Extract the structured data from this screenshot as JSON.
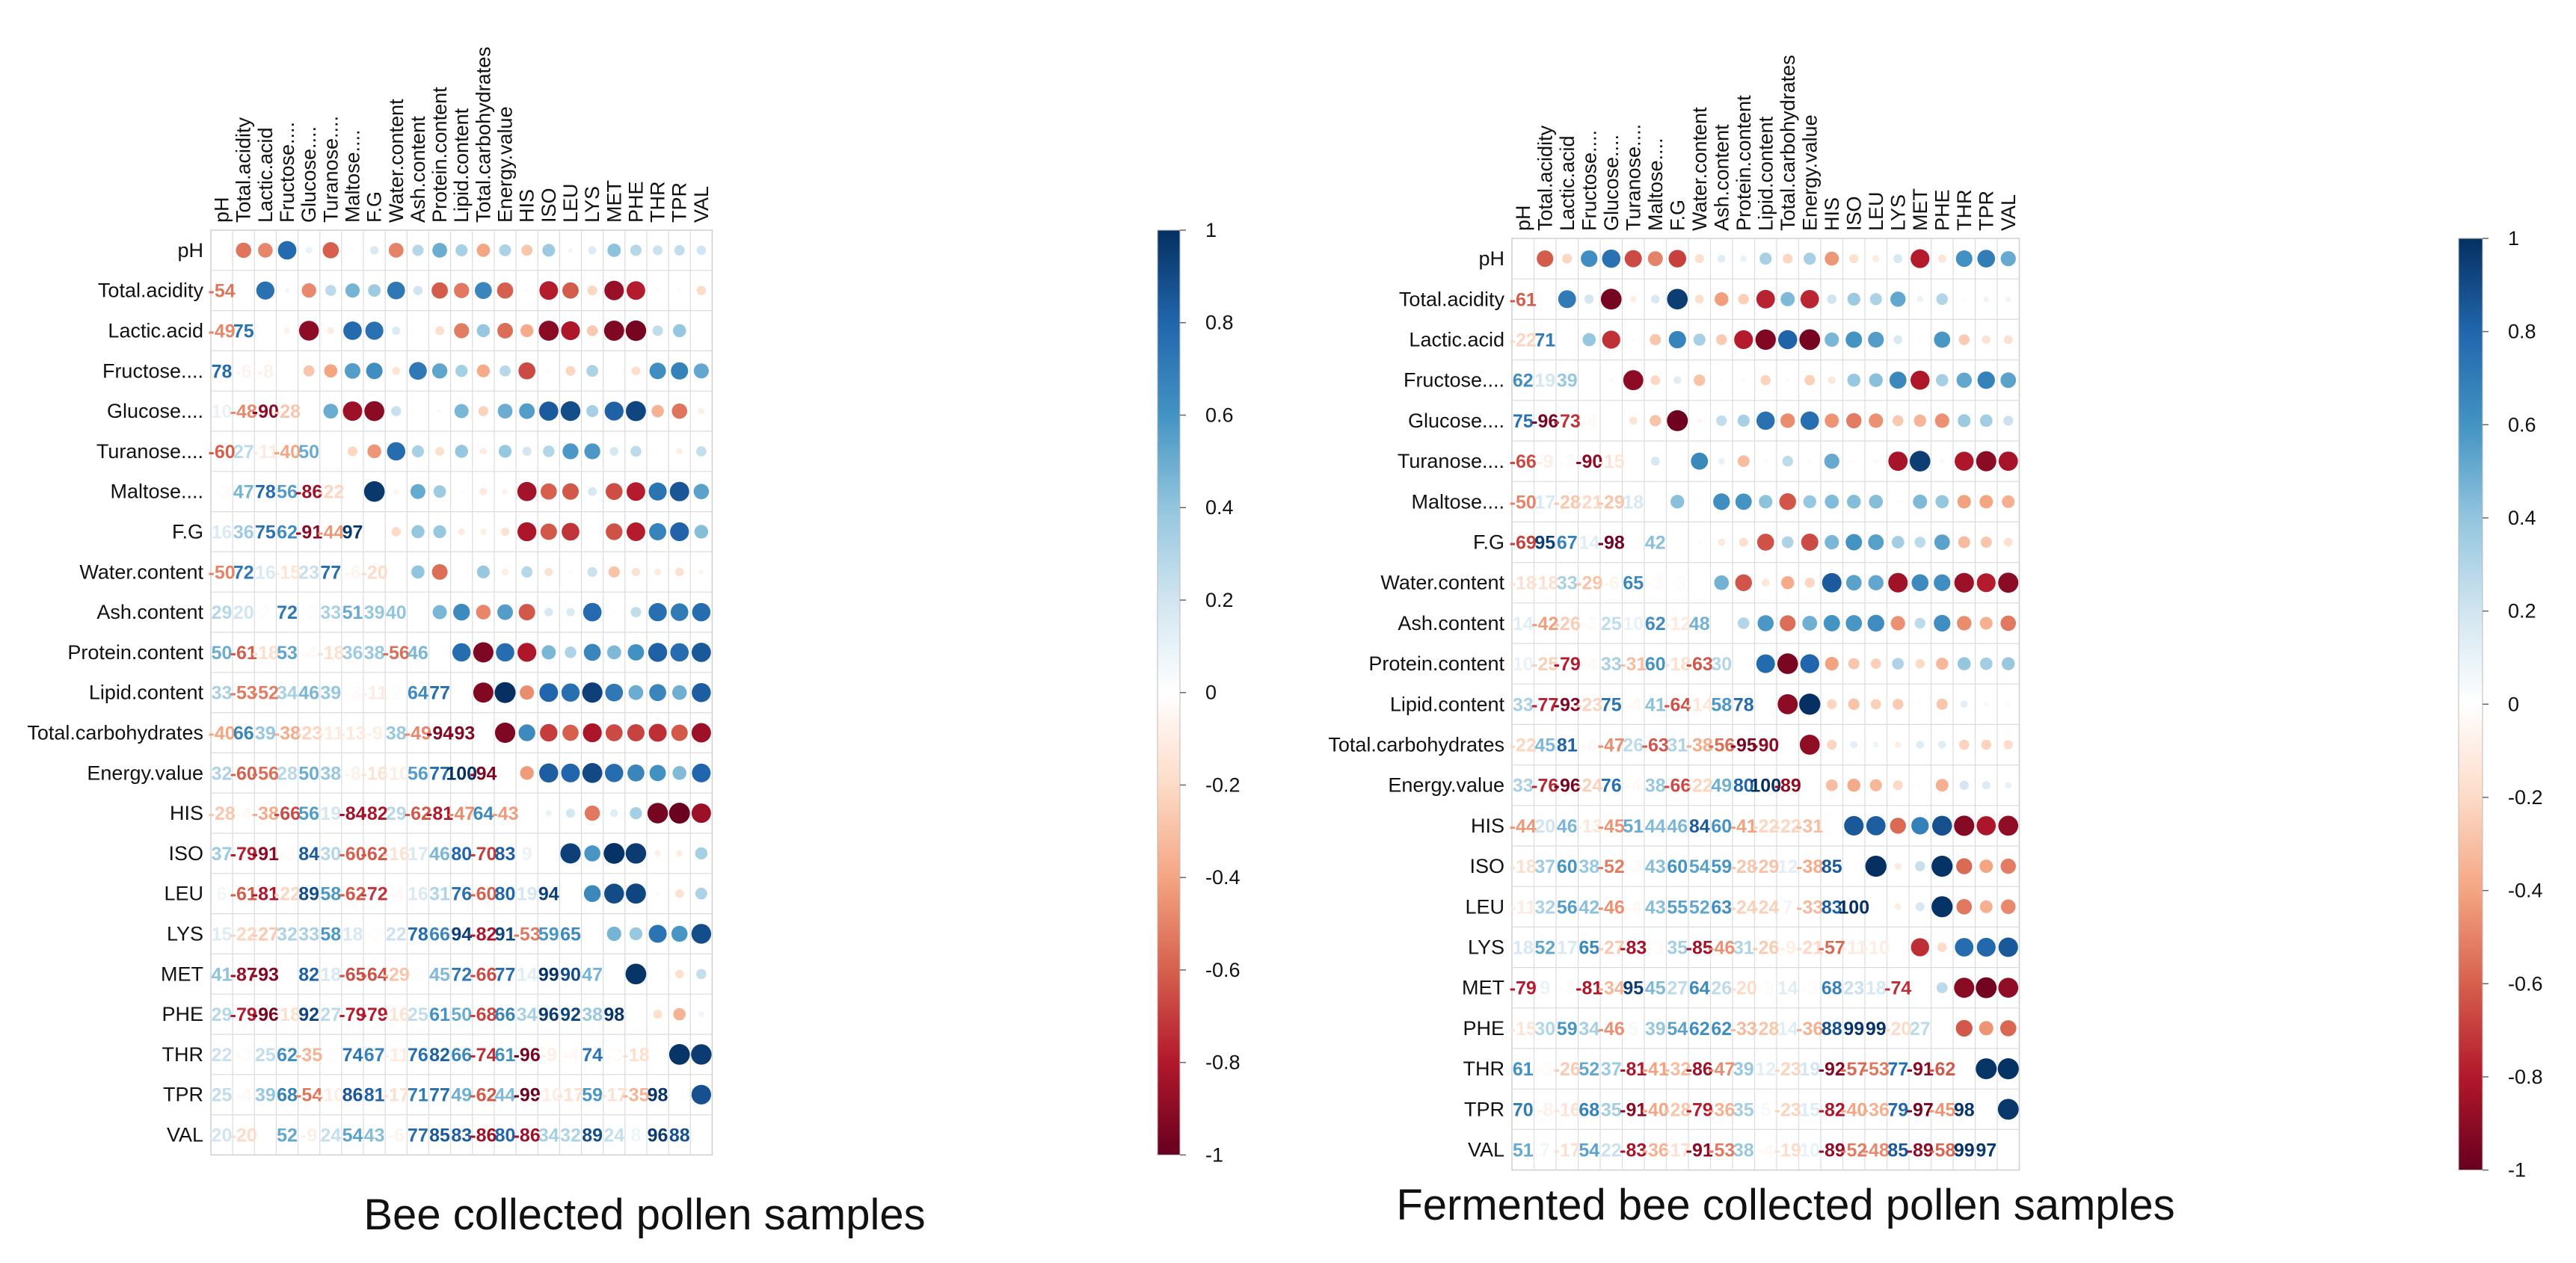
{
  "chart_data": [
    {
      "type": "heatmap",
      "style": "correlogram (mixed: numbers lower, circles upper)",
      "title": "Bee collected pollen samples",
      "variables": [
        "pH",
        "Total.acidity",
        "Lactic.acid",
        "Fructose....",
        "Glucose....",
        "Turanose....",
        "Maltose....",
        "F.G",
        "Water.content",
        "Ash.content",
        "Protein.content",
        "Lipid.content",
        "Total.carbohydrates",
        "Energy.value",
        "HIS",
        "ISO",
        "LEU",
        "LYS",
        "MET",
        "PHE",
        "THR",
        "TPR",
        "VAL"
      ],
      "lower_values": [
        [],
        [
          -54
        ],
        [
          -49,
          75
        ],
        [
          78,
          -6,
          -8
        ],
        [
          10,
          -48,
          -90,
          -28
        ],
        [
          -60,
          27,
          -11,
          -40,
          50
        ],
        [
          -3,
          47,
          78,
          56,
          -86,
          -22
        ],
        [
          16,
          36,
          75,
          62,
          -91,
          -44,
          97
        ],
        [
          -50,
          72,
          16,
          -15,
          23,
          77,
          -6,
          -20
        ],
        [
          29,
          20,
          2,
          72,
          -2,
          33,
          51,
          39,
          40
        ],
        [
          50,
          -61,
          -18,
          53,
          -4,
          -18,
          36,
          38,
          -56,
          46
        ],
        [
          33,
          -53,
          -52,
          34,
          46,
          39,
          -3,
          -11,
          2,
          64,
          77
        ],
        [
          -40,
          66,
          39,
          -38,
          -23,
          -11,
          -13,
          -9,
          38,
          -49,
          -94,
          -93
        ],
        [
          32,
          -60,
          -56,
          28,
          50,
          38,
          -8,
          -16,
          -10,
          56,
          77,
          100,
          -94
        ],
        [
          -28,
          -4,
          -38,
          -66,
          56,
          19,
          -84,
          -82,
          29,
          -62,
          -81,
          -47,
          64,
          -43
        ],
        [
          37,
          -79,
          -91,
          -3,
          84,
          30,
          -60,
          -62,
          -16,
          17,
          46,
          80,
          -70,
          83,
          9
        ],
        [
          6,
          -61,
          -81,
          -22,
          89,
          58,
          -62,
          -72,
          -4,
          16,
          31,
          76,
          -60,
          80,
          19,
          94
        ],
        [
          15,
          -22,
          -27,
          32,
          33,
          58,
          18,
          -2,
          22,
          78,
          66,
          94,
          -82,
          91,
          -53,
          59,
          65
        ],
        [
          41,
          -87,
          -93,
          -1,
          82,
          18,
          -65,
          -64,
          -29,
          2,
          45,
          72,
          -66,
          77,
          14,
          99,
          90,
          47
        ],
        [
          29,
          -79,
          -96,
          -18,
          92,
          27,
          -79,
          -79,
          -16,
          25,
          61,
          50,
          -68,
          66,
          34,
          96,
          92,
          38,
          98
        ],
        [
          22,
          -3,
          25,
          62,
          -35,
          2,
          74,
          67,
          -11,
          76,
          82,
          66,
          -74,
          61,
          -96,
          -9,
          -4,
          74,
          -3,
          -18
        ],
        [
          25,
          -4,
          39,
          68,
          -54,
          -10,
          86,
          81,
          -17,
          71,
          77,
          49,
          -62,
          44,
          -99,
          -10,
          -17,
          59,
          -17,
          -35,
          98
        ],
        [
          20,
          -20,
          1,
          52,
          -9,
          24,
          54,
          43,
          -6,
          77,
          85,
          83,
          -86,
          80,
          -86,
          34,
          32,
          89,
          24,
          8,
          96,
          88
        ]
      ],
      "colorbar_ticks": [
        "1",
        "0.8",
        "0.6",
        "0.4",
        "0.2",
        "0",
        "-0.2",
        "-0.4",
        "-0.6",
        "-0.8",
        "-1"
      ],
      "range": [
        -1,
        1
      ],
      "colors": {
        "neg": "#67001f",
        "pos": "#053061",
        "mid": "#ffffff"
      }
    },
    {
      "type": "heatmap",
      "style": "correlogram (mixed: numbers lower, circles upper)",
      "title": "Fermented bee collected pollen samples",
      "variables": [
        "pH",
        "Total.acidity",
        "Lactic.acid",
        "Fructose....",
        "Glucose....",
        "Turanose....",
        "Maltose....",
        "F.G",
        "Water.content",
        "Ash.content",
        "Protein.content",
        "Lipid.content",
        "Total.carbohydrates",
        "Energy.value",
        "HIS",
        "ISO",
        "LEU",
        "LYS",
        "MET",
        "PHE",
        "THR",
        "TPR",
        "VAL"
      ],
      "lower_values": [
        [],
        [
          -61
        ],
        [
          -22,
          71
        ],
        [
          62,
          19,
          39
        ],
        [
          75,
          -96,
          -73,
          -4
        ],
        [
          -66,
          -9,
          -3,
          -90,
          -15
        ],
        [
          -50,
          17,
          -28,
          -21,
          -29,
          18
        ],
        [
          -69,
          95,
          67,
          14,
          -98,
          -1,
          42
        ],
        [
          -18,
          -18,
          33,
          -29,
          -6,
          65,
          -3,
          -3
        ],
        [
          14,
          -42,
          -26,
          -3,
          25,
          10,
          62,
          -12,
          48
        ],
        [
          10,
          -25,
          -79,
          -4,
          33,
          -31,
          60,
          -18,
          -63,
          30
        ],
        [
          33,
          -77,
          -93,
          -23,
          75,
          -4,
          41,
          -64,
          -14,
          58,
          78
        ],
        [
          -22,
          45,
          81,
          -4,
          -47,
          26,
          -63,
          31,
          -38,
          -56,
          -95,
          -90
        ],
        [
          33,
          -76,
          -96,
          -24,
          76,
          -4,
          38,
          -66,
          -22,
          49,
          80,
          100,
          -89
        ],
        [
          -44,
          20,
          46,
          -13,
          -45,
          51,
          44,
          46,
          84,
          60,
          -41,
          -22,
          -22,
          -31
        ],
        [
          -18,
          37,
          60,
          38,
          -52,
          -3,
          43,
          60,
          54,
          59,
          -28,
          -29,
          12,
          -38,
          85
        ],
        [
          -11,
          32,
          56,
          42,
          -46,
          -4,
          43,
          55,
          52,
          63,
          -24,
          -24,
          7,
          -33,
          83,
          100
        ],
        [
          18,
          52,
          17,
          65,
          -27,
          -83,
          -3,
          35,
          -85,
          -46,
          31,
          -26,
          -9,
          -21,
          -57,
          -11,
          -10
        ],
        [
          -79,
          9,
          -3,
          -81,
          -34,
          95,
          45,
          27,
          64,
          26,
          -20,
          -3,
          14,
          -3,
          68,
          23,
          18,
          -74
        ],
        [
          -15,
          30,
          59,
          34,
          -46,
          5,
          39,
          54,
          62,
          62,
          -33,
          -28,
          14,
          -36,
          88,
          99,
          99,
          -20,
          27
        ],
        [
          61,
          -3,
          -26,
          52,
          37,
          -81,
          -41,
          -32,
          -86,
          -47,
          39,
          12,
          -23,
          19,
          -92,
          -57,
          -53,
          77,
          -91,
          -62
        ],
        [
          70,
          -8,
          -16,
          68,
          35,
          -91,
          -40,
          -28,
          -79,
          -36,
          35,
          5,
          -23,
          15,
          -82,
          -40,
          -36,
          79,
          -97,
          -45,
          98
        ],
        [
          51,
          7,
          -17,
          54,
          22,
          -83,
          -36,
          -17,
          -91,
          -53,
          38,
          -4,
          -19,
          10,
          -89,
          -52,
          -48,
          85,
          -89,
          -58,
          99,
          97
        ]
      ],
      "colorbar_ticks": [
        "1",
        "0.8",
        "0.6",
        "0.4",
        "0.2",
        "0",
        "-0.2",
        "-0.4",
        "-0.6",
        "-0.8",
        "-1"
      ],
      "range": [
        -1,
        1
      ],
      "colors": {
        "neg": "#67001f",
        "pos": "#053061",
        "mid": "#ffffff"
      }
    }
  ]
}
